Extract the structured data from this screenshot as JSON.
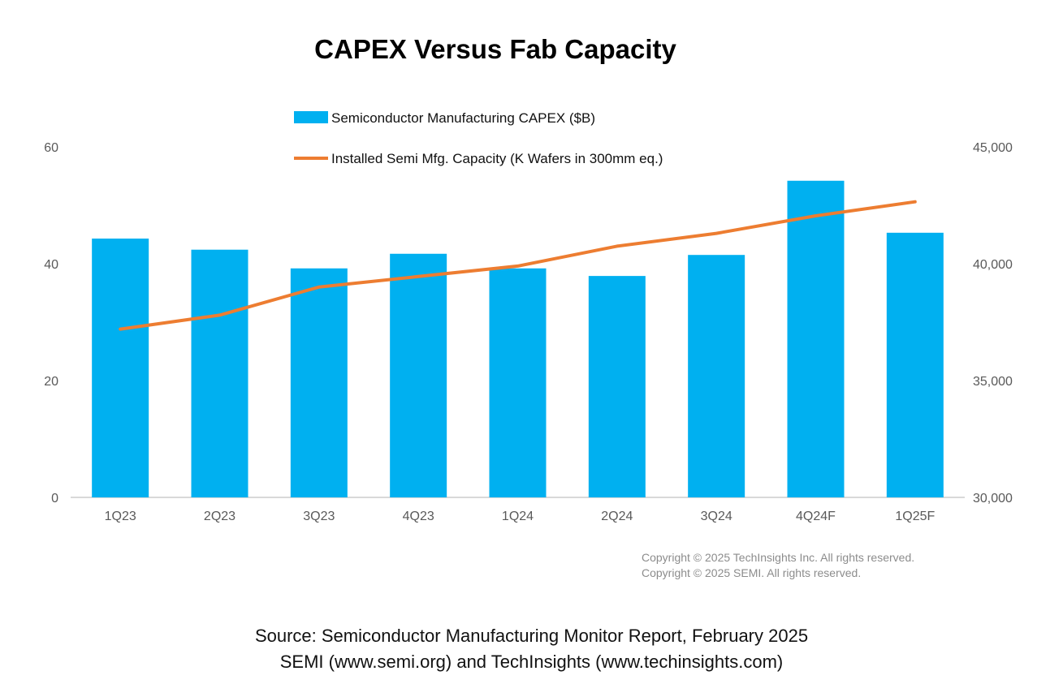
{
  "chart_data": {
    "type": "bar",
    "title": "CAPEX Versus Fab Capacity",
    "categories": [
      "1Q23",
      "2Q23",
      "3Q23",
      "4Q23",
      "1Q24",
      "2Q24",
      "3Q24",
      "4Q24F",
      "1Q25F"
    ],
    "series": [
      {
        "name": "Semiconductor Manufacturing CAPEX ($B)",
        "type": "bar",
        "axis": "left",
        "color": "#00B0F0",
        "values": [
          44.3,
          42.4,
          39.2,
          41.7,
          39.2,
          37.9,
          41.5,
          54.2,
          45.3
        ]
      },
      {
        "name": "Installed Semi Mfg. Capacity (K Wafers in 300mm eq.)",
        "type": "line",
        "axis": "right",
        "color": "#ED7D31",
        "values": [
          37200,
          37800,
          39000,
          39450,
          39900,
          40750,
          41300,
          42050,
          42650
        ]
      }
    ],
    "left_axis": {
      "ylim": [
        0,
        60
      ],
      "ticks": [
        "0",
        "20",
        "40",
        "60"
      ]
    },
    "right_axis": {
      "ylim": [
        30000,
        45000
      ],
      "ticks": [
        "30,000",
        "35,000",
        "40,000",
        "45,000"
      ]
    },
    "grid": false,
    "legend_placement": "top-center"
  },
  "copyright": [
    "Copyright © 2025 TechInsights Inc.  All rights reserved.",
    "Copyright © 2025 SEMI.  All rights reserved."
  ],
  "source": [
    "Source: Semiconductor Manufacturing Monitor Report, February 2025",
    "SEMI (www.semi.org) and TechInsights (www.techinsights.com)"
  ]
}
